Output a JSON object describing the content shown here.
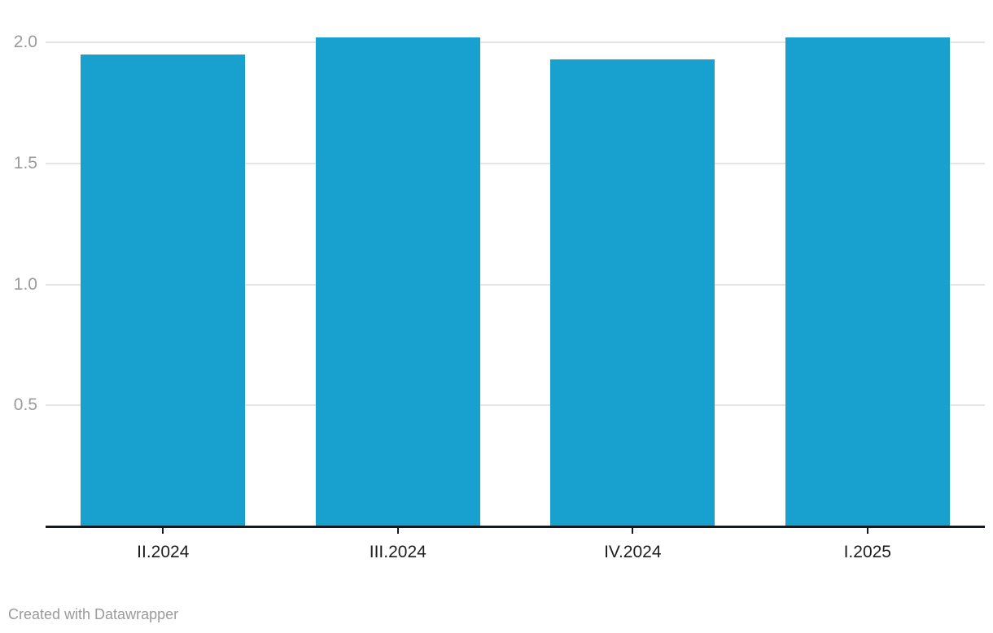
{
  "chart_data": {
    "type": "bar",
    "categories": [
      "II.2024",
      "III.2024",
      "IV.2024",
      "I.2025"
    ],
    "values": [
      1.95,
      2.02,
      1.93,
      2.02
    ],
    "title": "",
    "xlabel": "",
    "ylabel": "",
    "ylim": [
      0,
      2.17
    ],
    "y_ticks": [
      0.5,
      1.0,
      1.5,
      2.0
    ],
    "y_tick_labels": [
      "0.5",
      "1.0",
      "1.5",
      "2.0"
    ],
    "grid": "horizontal-only",
    "legend": "none",
    "bar_color": "#18a0ce"
  },
  "colors": {
    "bar": "#18a0ce",
    "axis_line": "#15181c",
    "gridline": "#e4e4e4",
    "y_tick_label": "#9b9b9b",
    "x_tick_label": "#1d1d1d",
    "footer_text": "#9a9a9a",
    "background": "#ffffff"
  },
  "footer": {
    "attribution": "Created with Datawrapper"
  }
}
